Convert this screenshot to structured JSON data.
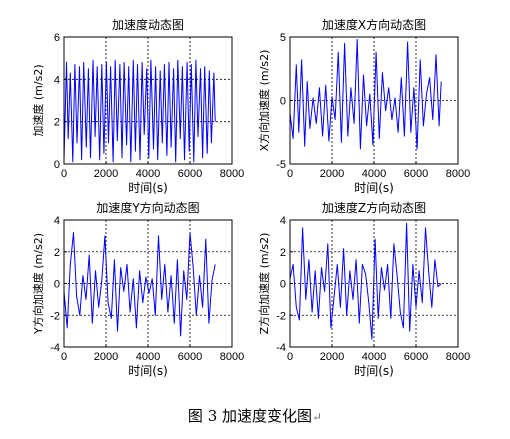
{
  "caption": {
    "text": "图 3  加速度变化图",
    "mark": "↵"
  },
  "colors": {
    "series": "#0000ff",
    "axes": "#000000",
    "grid": "#000000"
  },
  "chart_data": [
    {
      "type": "line",
      "title": "加速度动态图",
      "xlabel": "时间(s)",
      "ylabel": "加速度 (m/s2)",
      "xlim": [
        0,
        8000
      ],
      "ylim": [
        0,
        6
      ],
      "xticks": [
        0,
        2000,
        4000,
        6000,
        8000
      ],
      "yticks": [
        0,
        2,
        4,
        6
      ],
      "grid": true,
      "series": [
        {
          "x": [
            0,
            120,
            200,
            300,
            420,
            520,
            620,
            740,
            840,
            940,
            1060,
            1160,
            1260,
            1380,
            1480,
            1580,
            1700,
            1800,
            1900,
            2020,
            2120,
            2220,
            2340,
            2440,
            2540,
            2660,
            2760,
            2860,
            2980,
            3080,
            3180,
            3300,
            3400,
            3500,
            3620,
            3720,
            3820,
            3940,
            4040,
            4140,
            4260,
            4360,
            4460,
            4580,
            4680,
            4780,
            4900,
            5000,
            5100,
            5220,
            5320,
            5420,
            5540,
            5640,
            5740,
            5860,
            5960,
            6060,
            6180,
            6280,
            6380,
            6500,
            6600,
            6700,
            6820,
            6920,
            7020,
            7140,
            7200
          ],
          "y": [
            0.2,
            4.8,
            1.2,
            4.3,
            0.1,
            4.7,
            1.0,
            4.6,
            0.2,
            4.8,
            0.8,
            4.5,
            0.3,
            4.9,
            1.3,
            4.6,
            0.2,
            4.7,
            0.5,
            4.8,
            1.0,
            4.6,
            0.1,
            4.9,
            1.1,
            4.7,
            0.3,
            4.8,
            0.9,
            4.6,
            0.1,
            4.9,
            0.6,
            4.7,
            0.2,
            4.8,
            1.4,
            4.5,
            0.3,
            4.9,
            0.7,
            4.6,
            0.2,
            4.4,
            1.0,
            4.7,
            0.4,
            4.8,
            0.8,
            4.5,
            0.1,
            4.9,
            1.2,
            4.6,
            0.2,
            4.8,
            0.6,
            4.7,
            0.1,
            4.9,
            1.3,
            4.5,
            0.3,
            4.6,
            0.5,
            4.4,
            1.0,
            4.3,
            2.0
          ]
        }
      ]
    },
    {
      "type": "line",
      "title": "加速度X方向动态图",
      "xlabel": "时间(s)",
      "ylabel": "X方向加速度 (m/s2)",
      "xlim": [
        0,
        8000
      ],
      "ylim": [
        -5,
        5
      ],
      "xticks": [
        0,
        2000,
        4000,
        6000,
        8000
      ],
      "yticks": [
        -5,
        0,
        5
      ],
      "grid": true,
      "series": [
        {
          "x": [
            0,
            150,
            300,
            420,
            550,
            700,
            820,
            950,
            1100,
            1250,
            1400,
            1550,
            1700,
            1850,
            2000,
            2150,
            2300,
            2450,
            2600,
            2750,
            2900,
            3050,
            3200,
            3350,
            3500,
            3650,
            3800,
            3950,
            4100,
            4250,
            4400,
            4550,
            4700,
            4850,
            5000,
            5150,
            5300,
            5450,
            5600,
            5750,
            5900,
            6050,
            6200,
            6350,
            6500,
            6650,
            6800,
            6950,
            7100,
            7200
          ],
          "y": [
            -1.0,
            -3.0,
            2.8,
            -2.5,
            3.2,
            -3.6,
            1.5,
            -2.2,
            0.2,
            -1.8,
            1.0,
            -2.8,
            1.2,
            -3.2,
            0.3,
            -1.5,
            3.8,
            -3.3,
            4.5,
            -2.8,
            1.0,
            -1.8,
            4.8,
            -3.8,
            2.0,
            -2.0,
            0.5,
            -3.5,
            3.8,
            -3.0,
            2.2,
            -0.8,
            1.0,
            -1.5,
            0.2,
            -2.5,
            1.8,
            -2.8,
            4.6,
            -2.5,
            1.0,
            -3.8,
            3.2,
            -2.0,
            0.5,
            1.8,
            -1.5,
            3.6,
            -2.0,
            1.5
          ]
        }
      ]
    },
    {
      "type": "line",
      "title": "加速度Y方向动态图",
      "xlabel": "时间(s)",
      "ylabel": "Y方向加速度 (m/s2)",
      "xlim": [
        0,
        8000
      ],
      "ylim": [
        -4,
        4
      ],
      "xticks": [
        0,
        2000,
        4000,
        6000,
        8000
      ],
      "yticks": [
        -4,
        -2,
        0,
        2,
        4
      ],
      "grid": true,
      "series": [
        {
          "x": [
            0,
            150,
            300,
            450,
            600,
            750,
            900,
            1050,
            1200,
            1350,
            1500,
            1650,
            1800,
            1950,
            2100,
            2250,
            2400,
            2550,
            2700,
            2850,
            3000,
            3150,
            3300,
            3450,
            3600,
            3750,
            3900,
            4050,
            4200,
            4350,
            4500,
            4650,
            4800,
            4950,
            5100,
            5250,
            5400,
            5550,
            5700,
            5850,
            6000,
            6150,
            6300,
            6450,
            6600,
            6750,
            6900,
            7050,
            7200
          ],
          "y": [
            -0.5,
            -2.8,
            1.2,
            3.2,
            -0.8,
            -2.0,
            0.5,
            -1.0,
            1.8,
            -2.5,
            0.8,
            -1.5,
            0.2,
            3.0,
            -1.2,
            -2.2,
            1.5,
            -3.0,
            1.0,
            -0.5,
            1.2,
            -1.8,
            0.3,
            -2.8,
            0.8,
            -1.2,
            0.4,
            -0.6,
            0.3,
            -2.0,
            3.0,
            -1.0,
            1.2,
            -1.8,
            0.5,
            -2.5,
            1.5,
            -3.3,
            0.8,
            -1.0,
            3.2,
            1.0,
            -2.0,
            0.5,
            -1.5,
            2.8,
            -2.5,
            0.2,
            1.2
          ]
        }
      ]
    },
    {
      "type": "line",
      "title": "加速度Z方向动态图",
      "xlabel": "时间(s)",
      "ylabel": "Z方向加速度 (m/s2)",
      "xlim": [
        0,
        8000
      ],
      "ylim": [
        -4,
        4
      ],
      "xticks": [
        0,
        2000,
        4000,
        6000,
        8000
      ],
      "yticks": [
        -4,
        -2,
        0,
        2,
        4
      ],
      "grid": true,
      "series": [
        {
          "x": [
            0,
            150,
            300,
            450,
            600,
            750,
            900,
            1050,
            1200,
            1350,
            1500,
            1650,
            1800,
            1950,
            2100,
            2250,
            2400,
            2550,
            2700,
            2850,
            3000,
            3150,
            3300,
            3450,
            3600,
            3750,
            3900,
            4050,
            4200,
            4350,
            4500,
            4650,
            4800,
            4950,
            5100,
            5250,
            5400,
            5550,
            5700,
            5850,
            6000,
            6150,
            6300,
            6450,
            6600,
            6750,
            6900,
            7050,
            7200
          ],
          "y": [
            0.3,
            1.2,
            -1.5,
            -2.3,
            3.5,
            -1.0,
            1.5,
            -1.8,
            0.8,
            -2.2,
            1.0,
            -0.5,
            2.5,
            -2.8,
            -0.8,
            1.2,
            -1.5,
            2.2,
            -2.0,
            0.8,
            -1.0,
            1.5,
            -2.5,
            1.2,
            0.6,
            -1.2,
            -3.5,
            2.8,
            -2.2,
            1.0,
            -0.4,
            1.2,
            -2.2,
            2.5,
            0.5,
            -1.8,
            -2.8,
            3.8,
            -3.0,
            1.2,
            -1.5,
            0.8,
            -1.2,
            3.5,
            0.8,
            -1.5,
            1.5,
            -0.2,
            0.0
          ]
        }
      ]
    }
  ]
}
